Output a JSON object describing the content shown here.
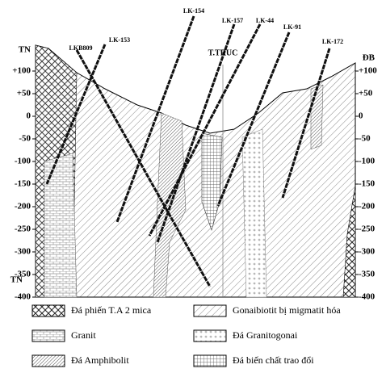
{
  "axis": {
    "left_top": "TN",
    "right_top": "ĐB",
    "left_bottom": "TN",
    "ticks": [
      "+100",
      "+50",
      "0",
      "-50",
      "-100",
      "-150",
      "-200",
      "-250",
      "-300",
      "-350",
      "-400"
    ]
  },
  "center_label": "T.TRUC",
  "boreholes": [
    {
      "label": "LKB809"
    },
    {
      "label": "LK-153"
    },
    {
      "label": "LK-154"
    },
    {
      "label": "LK-157"
    },
    {
      "label": "LK-44"
    },
    {
      "label": "LK-91"
    },
    {
      "label": "LK-172"
    }
  ],
  "legend": [
    {
      "label": "Đá phiến T.A 2 mica"
    },
    {
      "label": "Gonaibiotit bị migmatit hóa"
    },
    {
      "label": "Granit"
    },
    {
      "label": "Đá Granitogonai"
    },
    {
      "label": "Đá Amphibolit"
    },
    {
      "label": "Đá biến chất trao đổi"
    }
  ]
}
